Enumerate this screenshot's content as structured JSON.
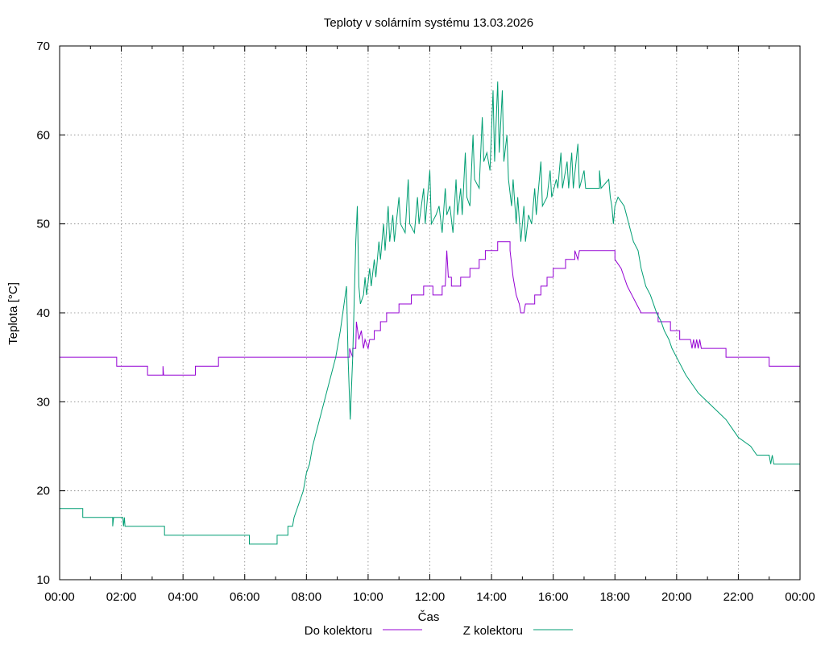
{
  "chart_data": {
    "type": "line",
    "title": "Teploty v solárním systému 13.03.2026",
    "xlabel": "Čas",
    "ylabel": "Teplota [°C]",
    "x_unit": "hours",
    "xlim": [
      0,
      24
    ],
    "ylim": [
      10,
      70
    ],
    "grid": true,
    "legend_position": "bottom",
    "x_ticks": [
      0,
      2,
      4,
      6,
      8,
      10,
      12,
      14,
      16,
      18,
      20,
      22,
      24
    ],
    "x_tick_labels": [
      "00:00",
      "02:00",
      "04:00",
      "06:00",
      "08:00",
      "10:00",
      "12:00",
      "14:00",
      "16:00",
      "18:00",
      "20:00",
      "22:00",
      "00:00"
    ],
    "y_ticks": [
      10,
      20,
      30,
      40,
      50,
      60,
      70
    ],
    "y_tick_labels": [
      "10",
      "20",
      "30",
      "40",
      "50",
      "60",
      "70"
    ],
    "series": [
      {
        "name": "Do kolektoru",
        "color": "#9400d3",
        "points": [
          [
            0,
            35
          ],
          [
            1.85,
            35
          ],
          [
            1.85,
            34
          ],
          [
            2.85,
            34
          ],
          [
            2.85,
            33
          ],
          [
            3.35,
            33
          ],
          [
            3.35,
            34
          ],
          [
            3.37,
            33
          ],
          [
            4.4,
            33
          ],
          [
            4.4,
            34
          ],
          [
            5.15,
            34
          ],
          [
            5.15,
            35
          ],
          [
            9.4,
            35
          ],
          [
            9.4,
            36
          ],
          [
            9.5,
            35
          ],
          [
            9.5,
            36
          ],
          [
            9.6,
            36
          ],
          [
            9.62,
            39
          ],
          [
            9.7,
            37
          ],
          [
            9.78,
            38
          ],
          [
            9.85,
            36
          ],
          [
            9.9,
            37
          ],
          [
            10.0,
            36
          ],
          [
            10.05,
            37
          ],
          [
            10.2,
            37
          ],
          [
            10.2,
            38
          ],
          [
            10.4,
            38
          ],
          [
            10.4,
            39
          ],
          [
            10.6,
            39
          ],
          [
            10.6,
            40
          ],
          [
            11.0,
            40
          ],
          [
            11.0,
            41
          ],
          [
            11.4,
            41
          ],
          [
            11.4,
            42
          ],
          [
            11.8,
            42
          ],
          [
            11.8,
            43
          ],
          [
            12.1,
            43
          ],
          [
            12.1,
            42
          ],
          [
            12.4,
            42
          ],
          [
            12.4,
            43
          ],
          [
            12.5,
            43
          ],
          [
            12.55,
            47
          ],
          [
            12.6,
            44
          ],
          [
            12.7,
            44
          ],
          [
            12.7,
            43
          ],
          [
            13.0,
            43
          ],
          [
            13.0,
            44
          ],
          [
            13.3,
            44
          ],
          [
            13.3,
            45
          ],
          [
            13.6,
            45
          ],
          [
            13.6,
            46
          ],
          [
            13.8,
            46
          ],
          [
            13.8,
            47
          ],
          [
            14.2,
            47
          ],
          [
            14.2,
            48
          ],
          [
            14.6,
            48
          ],
          [
            14.6,
            47
          ],
          [
            14.7,
            44
          ],
          [
            14.8,
            42
          ],
          [
            14.9,
            41
          ],
          [
            14.95,
            40
          ],
          [
            15.05,
            40
          ],
          [
            15.1,
            41
          ],
          [
            15.4,
            41
          ],
          [
            15.4,
            42
          ],
          [
            15.6,
            42
          ],
          [
            15.6,
            43
          ],
          [
            15.8,
            43
          ],
          [
            15.8,
            44
          ],
          [
            16.0,
            44
          ],
          [
            16.0,
            45
          ],
          [
            16.4,
            45
          ],
          [
            16.4,
            46
          ],
          [
            16.7,
            46
          ],
          [
            16.7,
            47
          ],
          [
            16.8,
            46
          ],
          [
            16.85,
            47
          ],
          [
            18.0,
            47
          ],
          [
            18.0,
            46
          ],
          [
            18.2,
            45
          ],
          [
            18.3,
            44
          ],
          [
            18.4,
            43
          ],
          [
            18.55,
            42
          ],
          [
            18.7,
            41
          ],
          [
            18.85,
            40
          ],
          [
            19.4,
            40
          ],
          [
            19.4,
            39
          ],
          [
            19.8,
            39
          ],
          [
            19.8,
            38
          ],
          [
            20.1,
            38
          ],
          [
            20.1,
            37
          ],
          [
            20.45,
            37
          ],
          [
            20.5,
            36
          ],
          [
            20.55,
            37
          ],
          [
            20.6,
            36
          ],
          [
            20.65,
            37
          ],
          [
            20.7,
            36
          ],
          [
            20.75,
            37
          ],
          [
            20.8,
            36
          ],
          [
            21.6,
            36
          ],
          [
            21.6,
            35
          ],
          [
            23.0,
            35
          ],
          [
            23.0,
            34
          ],
          [
            24,
            34
          ]
        ]
      },
      {
        "name": "Z kolektoru",
        "color": "#009e73",
        "points": [
          [
            0,
            18
          ],
          [
            0.75,
            18
          ],
          [
            0.75,
            17
          ],
          [
            1.72,
            17
          ],
          [
            1.72,
            16
          ],
          [
            1.75,
            17
          ],
          [
            2.05,
            17
          ],
          [
            2.07,
            16
          ],
          [
            2.1,
            17
          ],
          [
            2.12,
            16
          ],
          [
            3.4,
            16
          ],
          [
            3.4,
            15
          ],
          [
            6.15,
            15
          ],
          [
            6.15,
            14
          ],
          [
            7.05,
            14
          ],
          [
            7.05,
            15
          ],
          [
            7.4,
            15
          ],
          [
            7.4,
            16
          ],
          [
            7.55,
            16
          ],
          [
            7.6,
            17
          ],
          [
            7.7,
            18
          ],
          [
            7.8,
            19
          ],
          [
            7.9,
            20
          ],
          [
            8.0,
            22
          ],
          [
            8.1,
            23
          ],
          [
            8.2,
            25
          ],
          [
            8.35,
            27
          ],
          [
            8.5,
            29
          ],
          [
            8.65,
            31
          ],
          [
            8.8,
            33
          ],
          [
            8.95,
            35
          ],
          [
            9.1,
            38
          ],
          [
            9.3,
            43
          ],
          [
            9.35,
            35
          ],
          [
            9.42,
            28
          ],
          [
            9.5,
            35
          ],
          [
            9.6,
            48
          ],
          [
            9.65,
            52
          ],
          [
            9.7,
            43
          ],
          [
            9.75,
            41
          ],
          [
            9.85,
            42
          ],
          [
            9.9,
            44
          ],
          [
            9.95,
            42
          ],
          [
            10.05,
            45
          ],
          [
            10.1,
            43
          ],
          [
            10.2,
            46
          ],
          [
            10.25,
            44
          ],
          [
            10.35,
            48
          ],
          [
            10.4,
            46
          ],
          [
            10.5,
            50
          ],
          [
            10.55,
            47
          ],
          [
            10.65,
            52
          ],
          [
            10.7,
            48
          ],
          [
            10.8,
            51
          ],
          [
            10.85,
            48
          ],
          [
            11.0,
            53
          ],
          [
            11.05,
            50
          ],
          [
            11.2,
            49
          ],
          [
            11.3,
            55
          ],
          [
            11.35,
            50
          ],
          [
            11.5,
            49
          ],
          [
            11.6,
            53
          ],
          [
            11.65,
            50
          ],
          [
            11.8,
            54
          ],
          [
            11.85,
            50
          ],
          [
            12.0,
            56
          ],
          [
            12.05,
            50
          ],
          [
            12.2,
            51
          ],
          [
            12.3,
            52
          ],
          [
            12.4,
            49
          ],
          [
            12.5,
            54
          ],
          [
            12.55,
            51
          ],
          [
            12.65,
            52
          ],
          [
            12.75,
            49
          ],
          [
            12.85,
            55
          ],
          [
            12.9,
            51
          ],
          [
            13.0,
            54
          ],
          [
            13.05,
            51
          ],
          [
            13.15,
            58
          ],
          [
            13.2,
            53
          ],
          [
            13.3,
            52
          ],
          [
            13.4,
            60
          ],
          [
            13.45,
            55
          ],
          [
            13.6,
            54
          ],
          [
            13.7,
            62
          ],
          [
            13.75,
            57
          ],
          [
            13.85,
            58
          ],
          [
            13.95,
            56
          ],
          [
            14.05,
            65
          ],
          [
            14.1,
            57
          ],
          [
            14.2,
            66
          ],
          [
            14.25,
            58
          ],
          [
            14.35,
            65
          ],
          [
            14.4,
            57
          ],
          [
            14.5,
            60
          ],
          [
            14.55,
            55
          ],
          [
            14.65,
            52
          ],
          [
            14.7,
            55
          ],
          [
            14.8,
            50
          ],
          [
            14.85,
            53
          ],
          [
            14.95,
            48
          ],
          [
            15.05,
            52
          ],
          [
            15.1,
            48
          ],
          [
            15.2,
            51
          ],
          [
            15.3,
            50
          ],
          [
            15.4,
            54
          ],
          [
            15.45,
            51
          ],
          [
            15.6,
            57
          ],
          [
            15.65,
            52
          ],
          [
            15.8,
            53
          ],
          [
            15.9,
            56
          ],
          [
            15.95,
            53
          ],
          [
            16.1,
            55
          ],
          [
            16.15,
            54
          ],
          [
            16.25,
            58
          ],
          [
            16.3,
            54
          ],
          [
            16.45,
            57
          ],
          [
            16.5,
            54
          ],
          [
            16.6,
            58
          ],
          [
            16.65,
            54
          ],
          [
            16.8,
            59
          ],
          [
            16.85,
            54
          ],
          [
            17.0,
            56
          ],
          [
            17.05,
            54
          ],
          [
            17.5,
            54
          ],
          [
            17.5,
            56
          ],
          [
            17.55,
            54
          ],
          [
            17.8,
            55
          ],
          [
            17.85,
            53
          ],
          [
            17.9,
            52
          ],
          [
            17.95,
            50
          ],
          [
            18.0,
            52
          ],
          [
            18.1,
            53
          ],
          [
            18.3,
            52
          ],
          [
            18.45,
            50
          ],
          [
            18.6,
            48
          ],
          [
            18.75,
            47
          ],
          [
            18.85,
            45
          ],
          [
            19.0,
            43
          ],
          [
            19.15,
            42
          ],
          [
            19.25,
            41
          ],
          [
            19.35,
            40
          ],
          [
            19.5,
            39
          ],
          [
            19.6,
            38
          ],
          [
            19.75,
            37
          ],
          [
            19.85,
            36
          ],
          [
            20.0,
            35
          ],
          [
            20.15,
            34
          ],
          [
            20.3,
            33
          ],
          [
            20.5,
            32
          ],
          [
            20.7,
            31
          ],
          [
            21.0,
            30
          ],
          [
            21.3,
            29
          ],
          [
            21.6,
            28
          ],
          [
            21.8,
            27
          ],
          [
            22.0,
            26
          ],
          [
            22.4,
            25
          ],
          [
            22.6,
            24
          ],
          [
            23.0,
            24
          ],
          [
            23.05,
            23
          ],
          [
            23.1,
            24
          ],
          [
            23.15,
            23
          ],
          [
            24,
            23
          ]
        ]
      }
    ]
  }
}
